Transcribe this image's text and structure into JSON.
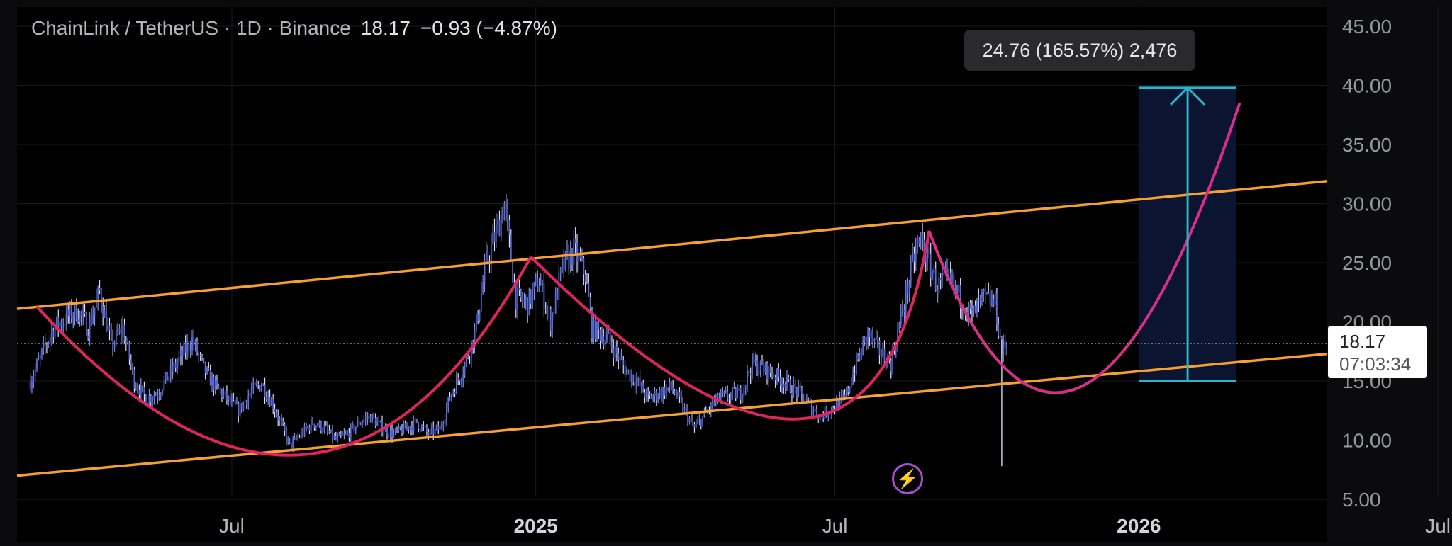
{
  "header": {
    "symbol": "ChainLink / TetherUS · 1D · Binance",
    "price": "18.17",
    "change": "−0.93 (−4.87%)"
  },
  "price_tag": {
    "price": "18.17",
    "countdown": "07:03:34"
  },
  "measure_tooltip": "24.76 (165.57%) 2,476",
  "alert_icon": "lightning-icon",
  "colors": {
    "background": "#000000",
    "candles": "#5b6bd6",
    "channel": "#f5a031",
    "curve": "#e0245e",
    "projection_curve": "#d62f86",
    "measure": "#2bb3c9",
    "measure_box": "#0b1430",
    "alert": "#a64fcf"
  },
  "chart_data": {
    "type": "candlestick",
    "y_axis": {
      "ticks": [
        "45.00",
        "40.00",
        "35.00",
        "30.00",
        "25.00",
        "20.00",
        "15.00",
        "10.00",
        "5.00"
      ],
      "ylim": [
        5,
        45
      ],
      "side": "right"
    },
    "x_axis": {
      "ticks": [
        "Jul",
        "2025",
        "Jul",
        "2026",
        "Jul"
      ],
      "bold_ticks": [
        "2025",
        "2026"
      ]
    },
    "grid": true,
    "price_series": [
      [
        "2024-03-01",
        15.0
      ],
      [
        "2024-03-15",
        19.5
      ],
      [
        "2024-03-29",
        21.0
      ],
      [
        "2024-04-05",
        19.5
      ],
      [
        "2024-04-12",
        22.5
      ],
      [
        "2024-04-19",
        18.0
      ],
      [
        "2024-04-26",
        19.5
      ],
      [
        "2024-05-03",
        15.0
      ],
      [
        "2024-05-10",
        13.5
      ],
      [
        "2024-05-17",
        14.0
      ],
      [
        "2024-05-24",
        15.5
      ],
      [
        "2024-05-31",
        17.0
      ],
      [
        "2024-06-07",
        18.5
      ],
      [
        "2024-06-14",
        16.0
      ],
      [
        "2024-06-21",
        14.5
      ],
      [
        "2024-06-28",
        13.5
      ],
      [
        "2024-07-05",
        12.5
      ],
      [
        "2024-07-12",
        14.0
      ],
      [
        "2024-07-19",
        14.8
      ],
      [
        "2024-07-26",
        13.0
      ],
      [
        "2024-08-05",
        9.5
      ],
      [
        "2024-08-12",
        10.5
      ],
      [
        "2024-08-19",
        11.5
      ],
      [
        "2024-08-26",
        11.0
      ],
      [
        "2024-09-02",
        10.0
      ],
      [
        "2024-09-09",
        10.5
      ],
      [
        "2024-09-16",
        11.5
      ],
      [
        "2024-09-23",
        12.0
      ],
      [
        "2024-09-30",
        11.0
      ],
      [
        "2024-10-07",
        10.5
      ],
      [
        "2024-10-14",
        11.0
      ],
      [
        "2024-10-21",
        11.5
      ],
      [
        "2024-10-28",
        10.5
      ],
      [
        "2024-11-04",
        11.0
      ],
      [
        "2024-11-11",
        14.0
      ],
      [
        "2024-11-18",
        16.0
      ],
      [
        "2024-11-25",
        19.0
      ],
      [
        "2024-12-02",
        25.0
      ],
      [
        "2024-12-09",
        28.0
      ],
      [
        "2024-12-13",
        30.0
      ],
      [
        "2024-12-20",
        22.0
      ],
      [
        "2024-12-27",
        21.5
      ],
      [
        "2025-01-03",
        23.5
      ],
      [
        "2025-01-10",
        20.0
      ],
      [
        "2025-01-17",
        24.5
      ],
      [
        "2025-01-24",
        26.0
      ],
      [
        "2025-01-31",
        24.0
      ],
      [
        "2025-02-04",
        19.5
      ],
      [
        "2025-02-14",
        18.5
      ],
      [
        "2025-02-24",
        16.0
      ],
      [
        "2025-03-03",
        15.0
      ],
      [
        "2025-03-10",
        13.5
      ],
      [
        "2025-03-24",
        14.5
      ],
      [
        "2025-04-07",
        11.0
      ],
      [
        "2025-04-21",
        13.5
      ],
      [
        "2025-05-05",
        14.0
      ],
      [
        "2025-05-12",
        16.5
      ],
      [
        "2025-05-26",
        15.5
      ],
      [
        "2025-06-09",
        14.0
      ],
      [
        "2025-06-22",
        12.0
      ],
      [
        "2025-07-07",
        13.5
      ],
      [
        "2025-07-14",
        16.5
      ],
      [
        "2025-07-21",
        19.0
      ],
      [
        "2025-07-28",
        17.5
      ],
      [
        "2025-08-04",
        16.5
      ],
      [
        "2025-08-11",
        21.0
      ],
      [
        "2025-08-18",
        25.5
      ],
      [
        "2025-08-22",
        27.0
      ],
      [
        "2025-09-01",
        23.0
      ],
      [
        "2025-09-08",
        23.5
      ],
      [
        "2025-09-15",
        22.0
      ],
      [
        "2025-09-22",
        20.5
      ],
      [
        "2025-09-29",
        22.0
      ],
      [
        "2025-10-06",
        21.5
      ],
      [
        "2025-10-10",
        17.5
      ],
      [
        "2025-10-13",
        18.17
      ]
    ],
    "annotations": [
      {
        "type": "channel-line",
        "from": [
          "2024-02-22",
          21.1
        ],
        "to": [
          "2026-04-25",
          31.9
        ]
      },
      {
        "type": "channel-line",
        "from": [
          "2024-02-22",
          7.0
        ],
        "to": [
          "2026-04-25",
          17.3
        ]
      },
      {
        "type": "cup-curve",
        "points": [
          [
            "2024-03-05",
            21.3
          ],
          [
            "2024-08-15",
            8.8
          ],
          [
            "2024-12-29",
            25.5
          ]
        ]
      },
      {
        "type": "cup-curve",
        "points": [
          [
            "2024-12-29",
            25.5
          ],
          [
            "2025-06-10",
            11.8
          ],
          [
            "2025-08-27",
            27.7
          ]
        ]
      },
      {
        "type": "projection-curve",
        "points": [
          [
            "2025-08-27",
            27.7
          ],
          [
            "2025-11-25",
            14.4
          ],
          [
            "2026-03-03",
            38.5
          ]
        ]
      },
      {
        "type": "price-range",
        "from_date": "2026-01-01",
        "to_date": "2026-03-01",
        "low": 15.0,
        "high": 39.8
      }
    ]
  }
}
